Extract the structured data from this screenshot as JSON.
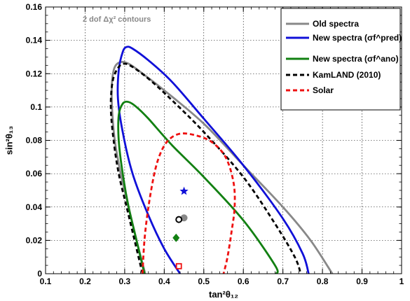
{
  "chart_data": {
    "type": "line",
    "title": "",
    "annotation": "2 dof Δχ² contours",
    "xlabel": "tan²θ₁₂",
    "ylabel": "sin²θ₁₃",
    "xlim": [
      0.1,
      1.0
    ],
    "ylim": [
      0,
      0.16
    ],
    "x_ticks": [
      "0.1",
      "0.2",
      "0.3",
      "0.4",
      "0.5",
      "0.6",
      "0.7",
      "0.8",
      "0.9",
      "1"
    ],
    "y_ticks": [
      "0",
      "0.02",
      "0.04",
      "0.06",
      "0.08",
      "0.1",
      "0.12",
      "0.14",
      "0.16"
    ],
    "grid": true,
    "legend_position": "top-right",
    "series": [
      {
        "name": "Old spectra",
        "color": "#888888",
        "style": "solid",
        "points": [
          [
            0.352,
            0
          ],
          [
            0.33,
            0.02
          ],
          [
            0.31,
            0.04
          ],
          [
            0.29,
            0.06
          ],
          [
            0.275,
            0.08
          ],
          [
            0.268,
            0.1
          ],
          [
            0.268,
            0.115
          ],
          [
            0.275,
            0.124
          ],
          [
            0.29,
            0.127
          ],
          [
            0.31,
            0.126
          ],
          [
            0.34,
            0.121
          ],
          [
            0.4,
            0.11
          ],
          [
            0.5,
            0.09
          ],
          [
            0.6,
            0.065
          ],
          [
            0.7,
            0.04
          ],
          [
            0.77,
            0.02
          ],
          [
            0.825,
            0
          ]
        ]
      },
      {
        "name": "New spectra (σf^pred)",
        "color": "#1010d8",
        "style": "solid",
        "points": [
          [
            0.44,
            0
          ],
          [
            0.4,
            0.015
          ],
          [
            0.36,
            0.035
          ],
          [
            0.32,
            0.06
          ],
          [
            0.295,
            0.085
          ],
          [
            0.283,
            0.105
          ],
          [
            0.285,
            0.122
          ],
          [
            0.295,
            0.133
          ],
          [
            0.305,
            0.136
          ],
          [
            0.32,
            0.135
          ],
          [
            0.36,
            0.128
          ],
          [
            0.42,
            0.115
          ],
          [
            0.5,
            0.093
          ],
          [
            0.6,
            0.065
          ],
          [
            0.7,
            0.033
          ],
          [
            0.75,
            0.012
          ],
          [
            0.765,
            0
          ]
        ]
      },
      {
        "name": "New spectra (σf^ano)",
        "color": "#128012",
        "style": "solid",
        "points": [
          [
            0.35,
            0
          ],
          [
            0.33,
            0.02
          ],
          [
            0.31,
            0.04
          ],
          [
            0.295,
            0.06
          ],
          [
            0.285,
            0.08
          ],
          [
            0.285,
            0.095
          ],
          [
            0.295,
            0.102
          ],
          [
            0.31,
            0.103
          ],
          [
            0.33,
            0.1
          ],
          [
            0.36,
            0.093
          ],
          [
            0.42,
            0.077
          ],
          [
            0.5,
            0.058
          ],
          [
            0.6,
            0.032
          ],
          [
            0.68,
            0.005
          ],
          [
            0.683,
            0
          ]
        ]
      },
      {
        "name": "KamLAND (2010)",
        "color": "#000000",
        "style": "dashed",
        "points": [
          [
            0.345,
            0
          ],
          [
            0.325,
            0.02
          ],
          [
            0.305,
            0.04
          ],
          [
            0.285,
            0.06
          ],
          [
            0.272,
            0.08
          ],
          [
            0.265,
            0.1
          ],
          [
            0.27,
            0.116
          ],
          [
            0.285,
            0.124
          ],
          [
            0.3,
            0.126
          ],
          [
            0.32,
            0.124
          ],
          [
            0.36,
            0.117
          ],
          [
            0.42,
            0.104
          ],
          [
            0.5,
            0.085
          ],
          [
            0.6,
            0.058
          ],
          [
            0.68,
            0.03
          ],
          [
            0.73,
            0.01
          ],
          [
            0.745,
            0
          ]
        ]
      },
      {
        "name": "Solar",
        "color": "#ee1111",
        "style": "dashed",
        "points": [
          [
            0.345,
            0
          ],
          [
            0.35,
            0.02
          ],
          [
            0.36,
            0.04
          ],
          [
            0.375,
            0.06
          ],
          [
            0.39,
            0.072
          ],
          [
            0.41,
            0.08
          ],
          [
            0.44,
            0.084
          ],
          [
            0.48,
            0.083
          ],
          [
            0.52,
            0.079
          ],
          [
            0.555,
            0.07
          ],
          [
            0.575,
            0.055
          ],
          [
            0.578,
            0.04
          ],
          [
            0.57,
            0.025
          ],
          [
            0.56,
            0.01
          ],
          [
            0.55,
            0
          ]
        ]
      }
    ],
    "best_fit_markers": [
      {
        "shape": "star",
        "color": "#1010d8",
        "x": 0.45,
        "y": 0.0495
      },
      {
        "shape": "filled-circle",
        "color": "#888888",
        "x": 0.45,
        "y": 0.0335
      },
      {
        "shape": "open-circle",
        "color": "#000000",
        "x": 0.437,
        "y": 0.0325
      },
      {
        "shape": "diamond",
        "color": "#128012",
        "x": 0.43,
        "y": 0.0215
      },
      {
        "shape": "open-square",
        "color": "#ee1111",
        "x": 0.437,
        "y": 0.0045
      }
    ]
  }
}
